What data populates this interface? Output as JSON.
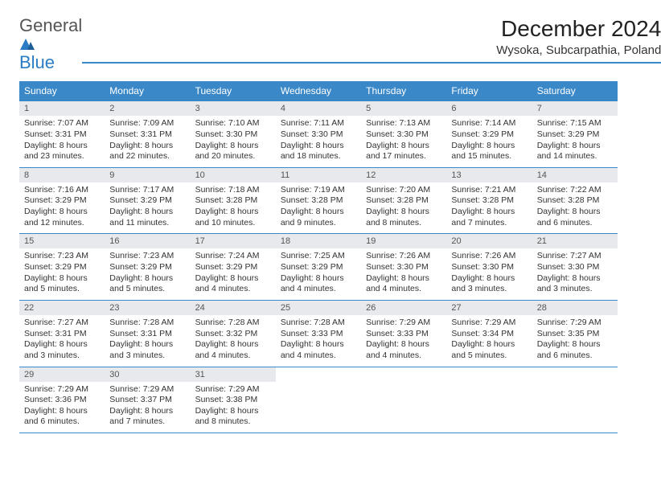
{
  "logo": {
    "word1": "General",
    "word2": "Blue",
    "word1_color": "#555555",
    "word2_color": "#2b7cc4",
    "icon_color": "#2b7cc4"
  },
  "title": "December 2024",
  "location": "Wysoka, Subcarpathia, Poland",
  "colors": {
    "header_bg": "#3a88c8",
    "header_text": "#ffffff",
    "daynum_bg": "#e7e9ec",
    "daynum_text": "#555555",
    "border": "#3a88c8",
    "body_text": "#333333"
  },
  "day_headers": [
    "Sunday",
    "Monday",
    "Tuesday",
    "Wednesday",
    "Thursday",
    "Friday",
    "Saturday"
  ],
  "weeks": [
    [
      {
        "num": "1",
        "sunrise": "Sunrise: 7:07 AM",
        "sunset": "Sunset: 3:31 PM",
        "day1": "Daylight: 8 hours",
        "day2": "and 23 minutes."
      },
      {
        "num": "2",
        "sunrise": "Sunrise: 7:09 AM",
        "sunset": "Sunset: 3:31 PM",
        "day1": "Daylight: 8 hours",
        "day2": "and 22 minutes."
      },
      {
        "num": "3",
        "sunrise": "Sunrise: 7:10 AM",
        "sunset": "Sunset: 3:30 PM",
        "day1": "Daylight: 8 hours",
        "day2": "and 20 minutes."
      },
      {
        "num": "4",
        "sunrise": "Sunrise: 7:11 AM",
        "sunset": "Sunset: 3:30 PM",
        "day1": "Daylight: 8 hours",
        "day2": "and 18 minutes."
      },
      {
        "num": "5",
        "sunrise": "Sunrise: 7:13 AM",
        "sunset": "Sunset: 3:30 PM",
        "day1": "Daylight: 8 hours",
        "day2": "and 17 minutes."
      },
      {
        "num": "6",
        "sunrise": "Sunrise: 7:14 AM",
        "sunset": "Sunset: 3:29 PM",
        "day1": "Daylight: 8 hours",
        "day2": "and 15 minutes."
      },
      {
        "num": "7",
        "sunrise": "Sunrise: 7:15 AM",
        "sunset": "Sunset: 3:29 PM",
        "day1": "Daylight: 8 hours",
        "day2": "and 14 minutes."
      }
    ],
    [
      {
        "num": "8",
        "sunrise": "Sunrise: 7:16 AM",
        "sunset": "Sunset: 3:29 PM",
        "day1": "Daylight: 8 hours",
        "day2": "and 12 minutes."
      },
      {
        "num": "9",
        "sunrise": "Sunrise: 7:17 AM",
        "sunset": "Sunset: 3:29 PM",
        "day1": "Daylight: 8 hours",
        "day2": "and 11 minutes."
      },
      {
        "num": "10",
        "sunrise": "Sunrise: 7:18 AM",
        "sunset": "Sunset: 3:28 PM",
        "day1": "Daylight: 8 hours",
        "day2": "and 10 minutes."
      },
      {
        "num": "11",
        "sunrise": "Sunrise: 7:19 AM",
        "sunset": "Sunset: 3:28 PM",
        "day1": "Daylight: 8 hours",
        "day2": "and 9 minutes."
      },
      {
        "num": "12",
        "sunrise": "Sunrise: 7:20 AM",
        "sunset": "Sunset: 3:28 PM",
        "day1": "Daylight: 8 hours",
        "day2": "and 8 minutes."
      },
      {
        "num": "13",
        "sunrise": "Sunrise: 7:21 AM",
        "sunset": "Sunset: 3:28 PM",
        "day1": "Daylight: 8 hours",
        "day2": "and 7 minutes."
      },
      {
        "num": "14",
        "sunrise": "Sunrise: 7:22 AM",
        "sunset": "Sunset: 3:28 PM",
        "day1": "Daylight: 8 hours",
        "day2": "and 6 minutes."
      }
    ],
    [
      {
        "num": "15",
        "sunrise": "Sunrise: 7:23 AM",
        "sunset": "Sunset: 3:29 PM",
        "day1": "Daylight: 8 hours",
        "day2": "and 5 minutes."
      },
      {
        "num": "16",
        "sunrise": "Sunrise: 7:23 AM",
        "sunset": "Sunset: 3:29 PM",
        "day1": "Daylight: 8 hours",
        "day2": "and 5 minutes."
      },
      {
        "num": "17",
        "sunrise": "Sunrise: 7:24 AM",
        "sunset": "Sunset: 3:29 PM",
        "day1": "Daylight: 8 hours",
        "day2": "and 4 minutes."
      },
      {
        "num": "18",
        "sunrise": "Sunrise: 7:25 AM",
        "sunset": "Sunset: 3:29 PM",
        "day1": "Daylight: 8 hours",
        "day2": "and 4 minutes."
      },
      {
        "num": "19",
        "sunrise": "Sunrise: 7:26 AM",
        "sunset": "Sunset: 3:30 PM",
        "day1": "Daylight: 8 hours",
        "day2": "and 4 minutes."
      },
      {
        "num": "20",
        "sunrise": "Sunrise: 7:26 AM",
        "sunset": "Sunset: 3:30 PM",
        "day1": "Daylight: 8 hours",
        "day2": "and 3 minutes."
      },
      {
        "num": "21",
        "sunrise": "Sunrise: 7:27 AM",
        "sunset": "Sunset: 3:30 PM",
        "day1": "Daylight: 8 hours",
        "day2": "and 3 minutes."
      }
    ],
    [
      {
        "num": "22",
        "sunrise": "Sunrise: 7:27 AM",
        "sunset": "Sunset: 3:31 PM",
        "day1": "Daylight: 8 hours",
        "day2": "and 3 minutes."
      },
      {
        "num": "23",
        "sunrise": "Sunrise: 7:28 AM",
        "sunset": "Sunset: 3:31 PM",
        "day1": "Daylight: 8 hours",
        "day2": "and 3 minutes."
      },
      {
        "num": "24",
        "sunrise": "Sunrise: 7:28 AM",
        "sunset": "Sunset: 3:32 PM",
        "day1": "Daylight: 8 hours",
        "day2": "and 4 minutes."
      },
      {
        "num": "25",
        "sunrise": "Sunrise: 7:28 AM",
        "sunset": "Sunset: 3:33 PM",
        "day1": "Daylight: 8 hours",
        "day2": "and 4 minutes."
      },
      {
        "num": "26",
        "sunrise": "Sunrise: 7:29 AM",
        "sunset": "Sunset: 3:33 PM",
        "day1": "Daylight: 8 hours",
        "day2": "and 4 minutes."
      },
      {
        "num": "27",
        "sunrise": "Sunrise: 7:29 AM",
        "sunset": "Sunset: 3:34 PM",
        "day1": "Daylight: 8 hours",
        "day2": "and 5 minutes."
      },
      {
        "num": "28",
        "sunrise": "Sunrise: 7:29 AM",
        "sunset": "Sunset: 3:35 PM",
        "day1": "Daylight: 8 hours",
        "day2": "and 6 minutes."
      }
    ],
    [
      {
        "num": "29",
        "sunrise": "Sunrise: 7:29 AM",
        "sunset": "Sunset: 3:36 PM",
        "day1": "Daylight: 8 hours",
        "day2": "and 6 minutes."
      },
      {
        "num": "30",
        "sunrise": "Sunrise: 7:29 AM",
        "sunset": "Sunset: 3:37 PM",
        "day1": "Daylight: 8 hours",
        "day2": "and 7 minutes."
      },
      {
        "num": "31",
        "sunrise": "Sunrise: 7:29 AM",
        "sunset": "Sunset: 3:38 PM",
        "day1": "Daylight: 8 hours",
        "day2": "and 8 minutes."
      },
      null,
      null,
      null,
      null
    ]
  ]
}
